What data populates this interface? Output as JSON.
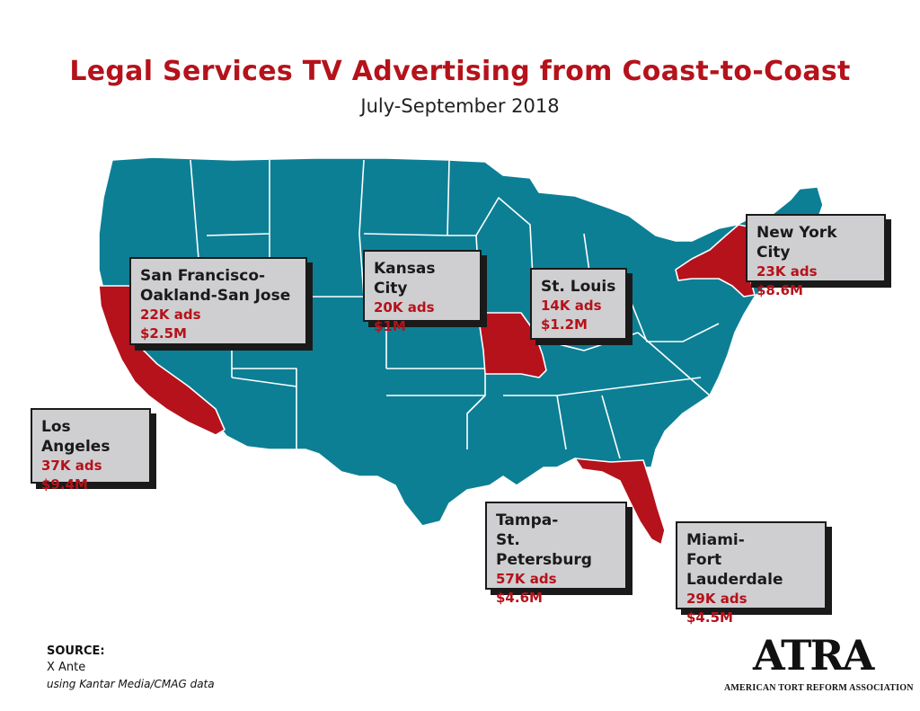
{
  "title": "Legal Services TV Advertising from Coast-to-Coast",
  "subtitle": "July-September 2018",
  "colors": {
    "land": "#0c7f95",
    "highlight": "#b5121b",
    "border": "#ffffff",
    "callout_bg": "#cfcfd1"
  },
  "callouts": [
    {
      "city": "San Francisco-\nOakland-San Jose",
      "ads": "22K ads",
      "spend": "$2.5M"
    },
    {
      "city": "Kansas City",
      "ads": "20K ads",
      "spend": "$1M"
    },
    {
      "city": "St. Louis",
      "ads": "14K ads",
      "spend": "$1.2M"
    },
    {
      "city": "New York City",
      "ads": "23K ads",
      "spend": "$8.6M"
    },
    {
      "city": "Los Angeles",
      "ads": "37K ads",
      "spend": "$9.4M"
    },
    {
      "city": "Tampa-\nSt. Petersburg",
      "ads": "57K ads",
      "spend": "$4.6M"
    },
    {
      "city": "Miami-\nFort Lauderdale",
      "ads": "29K ads",
      "spend": "$4.5M"
    }
  ],
  "highlighted_states": [
    "California",
    "Missouri",
    "New York",
    "Florida"
  ],
  "source": {
    "heading": "SOURCE:",
    "name": "X Ante",
    "note": "using Kantar Media/CMAG data"
  },
  "logo": {
    "mark": "ATRA",
    "org": "AMERICAN TORT REFORM ASSOCIATION"
  }
}
